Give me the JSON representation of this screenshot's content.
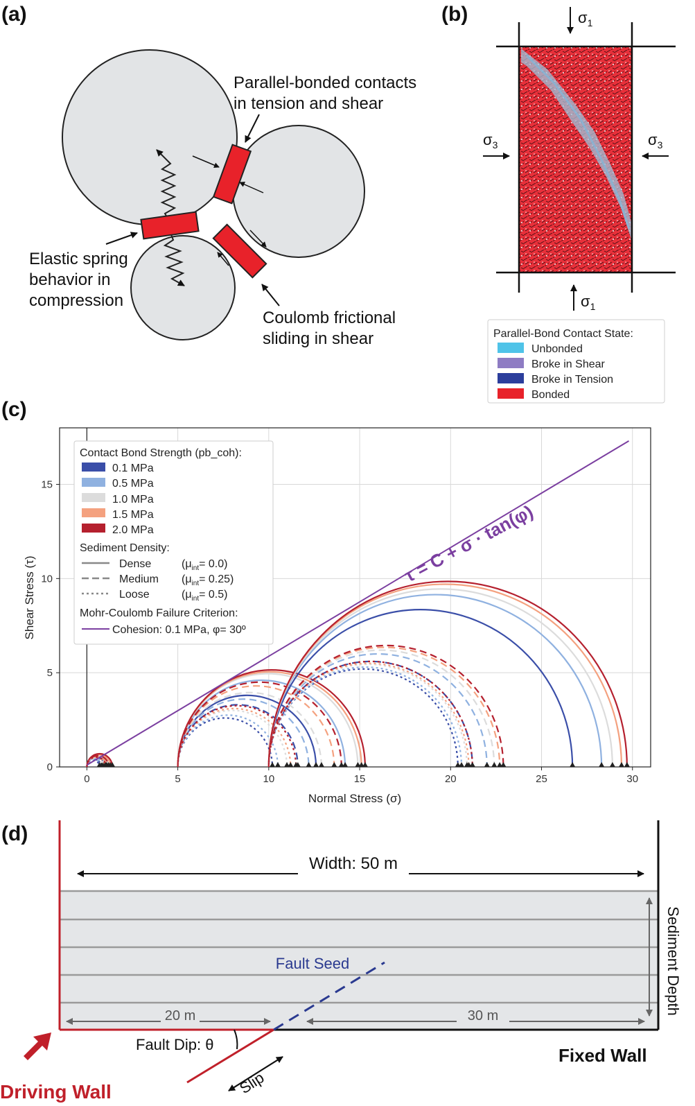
{
  "panel_labels": {
    "a": "(a)",
    "b": "(b)",
    "c": "(c)",
    "d": "(d)"
  },
  "panel_a": {
    "parallel_bond_line1": "Parallel-bonded contacts",
    "parallel_bond_line2": "in tension and shear",
    "elastic_line1": "Elastic spring",
    "elastic_line2": "behavior in",
    "elastic_line3": "compression",
    "coulomb_line1": "Coulomb frictional",
    "coulomb_line2": "sliding in shear"
  },
  "panel_b": {
    "sigma1": "σ",
    "sub1": "1",
    "sigma3": "σ",
    "sub3": "3",
    "legend_title": "Parallel-Bond Contact State:",
    "legend_items": [
      {
        "label": "Unbonded",
        "color": "#4fc3e8"
      },
      {
        "label": "Broke in Shear",
        "color": "#8e7cc3"
      },
      {
        "label": "Broke in Tension",
        "color": "#2c3e9c"
      },
      {
        "label": "Bonded",
        "color": "#e8222a"
      }
    ]
  },
  "chart_data": {
    "type": "line",
    "xlabel": "Normal Stress (σ)",
    "ylabel": "Shear Stress (τ)",
    "xlim": [
      -1.5,
      31
    ],
    "ylim": [
      0,
      18
    ],
    "xticks": [
      "0",
      "5",
      "10",
      "15",
      "20",
      "25",
      "30"
    ],
    "yticks": [
      "0",
      "5",
      "10",
      "15"
    ],
    "grid": true,
    "legend_position": "top-left",
    "legend": {
      "title1": "Contact Bond Strength (pb_coh):",
      "strengths": [
        {
          "label": "0.1 MPa",
          "color": "#3a4ea8"
        },
        {
          "label": "0.5 MPa",
          "color": "#8fb1e0"
        },
        {
          "label": "1.0 MPa",
          "color": "#dcdcdc"
        },
        {
          "label": "1.5 MPa",
          "color": "#f4a17f"
        },
        {
          "label": "2.0 MPa",
          "color": "#b5202e"
        }
      ],
      "title2": "Sediment Density:",
      "densities": [
        {
          "label": "Dense",
          "mu": "(μ",
          "mu_sub": "int",
          "mu_val": "= 0.0)",
          "dash": "solid"
        },
        {
          "label": "Medium",
          "mu": "(μ",
          "mu_sub": "int",
          "mu_val": "= 0.25)",
          "dash": "dashed"
        },
        {
          "label": "Loose",
          "mu": "(μ",
          "mu_sub": "int",
          "mu_val": "= 0.5)",
          "dash": "dotted"
        }
      ],
      "title3": "Mohr-Coulomb Failure Criterion:",
      "criterion_label": "Cohesion: 0.1 MPa, φ= 30º",
      "criterion_color": "#7b3fa0"
    },
    "envelope": {
      "label": "τ = C +  σ · tan(φ)",
      "cohesion": 0.1,
      "phi_deg": 30,
      "x_end": 29.8
    },
    "series": [
      {
        "name": "Dense",
        "confining": 0,
        "dash": "solid",
        "sigma1": [
          1.0,
          1.1,
          1.2,
          1.3,
          1.4
        ]
      },
      {
        "name": "Medium",
        "confining": 0,
        "dash": "dashed",
        "sigma1": [
          0.8,
          0.9,
          1.0,
          1.1,
          1.2
        ]
      },
      {
        "name": "Loose",
        "confining": 0,
        "dash": "dotted",
        "sigma1": [
          0.7,
          0.8,
          0.9,
          1.0,
          1.05
        ]
      },
      {
        "name": "Dense",
        "confining": 5,
        "dash": "solid",
        "sigma1": [
          12.6,
          14.2,
          14.9,
          15.1,
          15.3
        ]
      },
      {
        "name": "Medium",
        "confining": 5,
        "dash": "dashed",
        "sigma1": [
          11.6,
          12.2,
          12.9,
          13.6,
          14.0
        ]
      },
      {
        "name": "Loose",
        "confining": 5,
        "dash": "dotted",
        "sigma1": [
          10.2,
          10.5,
          11.0,
          11.2,
          11.5
        ]
      },
      {
        "name": "Dense",
        "confining": 10,
        "dash": "solid",
        "sigma1": [
          26.7,
          28.3,
          28.9,
          29.4,
          29.7
        ]
      },
      {
        "name": "Medium",
        "confining": 10,
        "dash": "dashed",
        "sigma1": [
          21.2,
          22.0,
          22.4,
          22.7,
          22.9
        ]
      },
      {
        "name": "Loose",
        "confining": 10,
        "dash": "dotted",
        "sigma1": [
          20.4,
          20.6,
          20.9,
          21.0,
          21.2
        ]
      }
    ]
  },
  "panel_d": {
    "width_label": "Width: 50 m",
    "sediment_depth": "Sediment Depth",
    "fault_seed": "Fault Seed",
    "dist_left": "20 m",
    "dist_right": "30 m",
    "fault_dip": "Fault Dip: θ",
    "slip": "Slip",
    "fixed_wall": "Fixed Wall",
    "driving_wall": "Driving Wall",
    "colors": {
      "driving": "#c0202a",
      "fault_seed": "#2a3a90",
      "sediment_fill": "#e4e6e8",
      "layer_line": "#9a9a9a"
    }
  }
}
